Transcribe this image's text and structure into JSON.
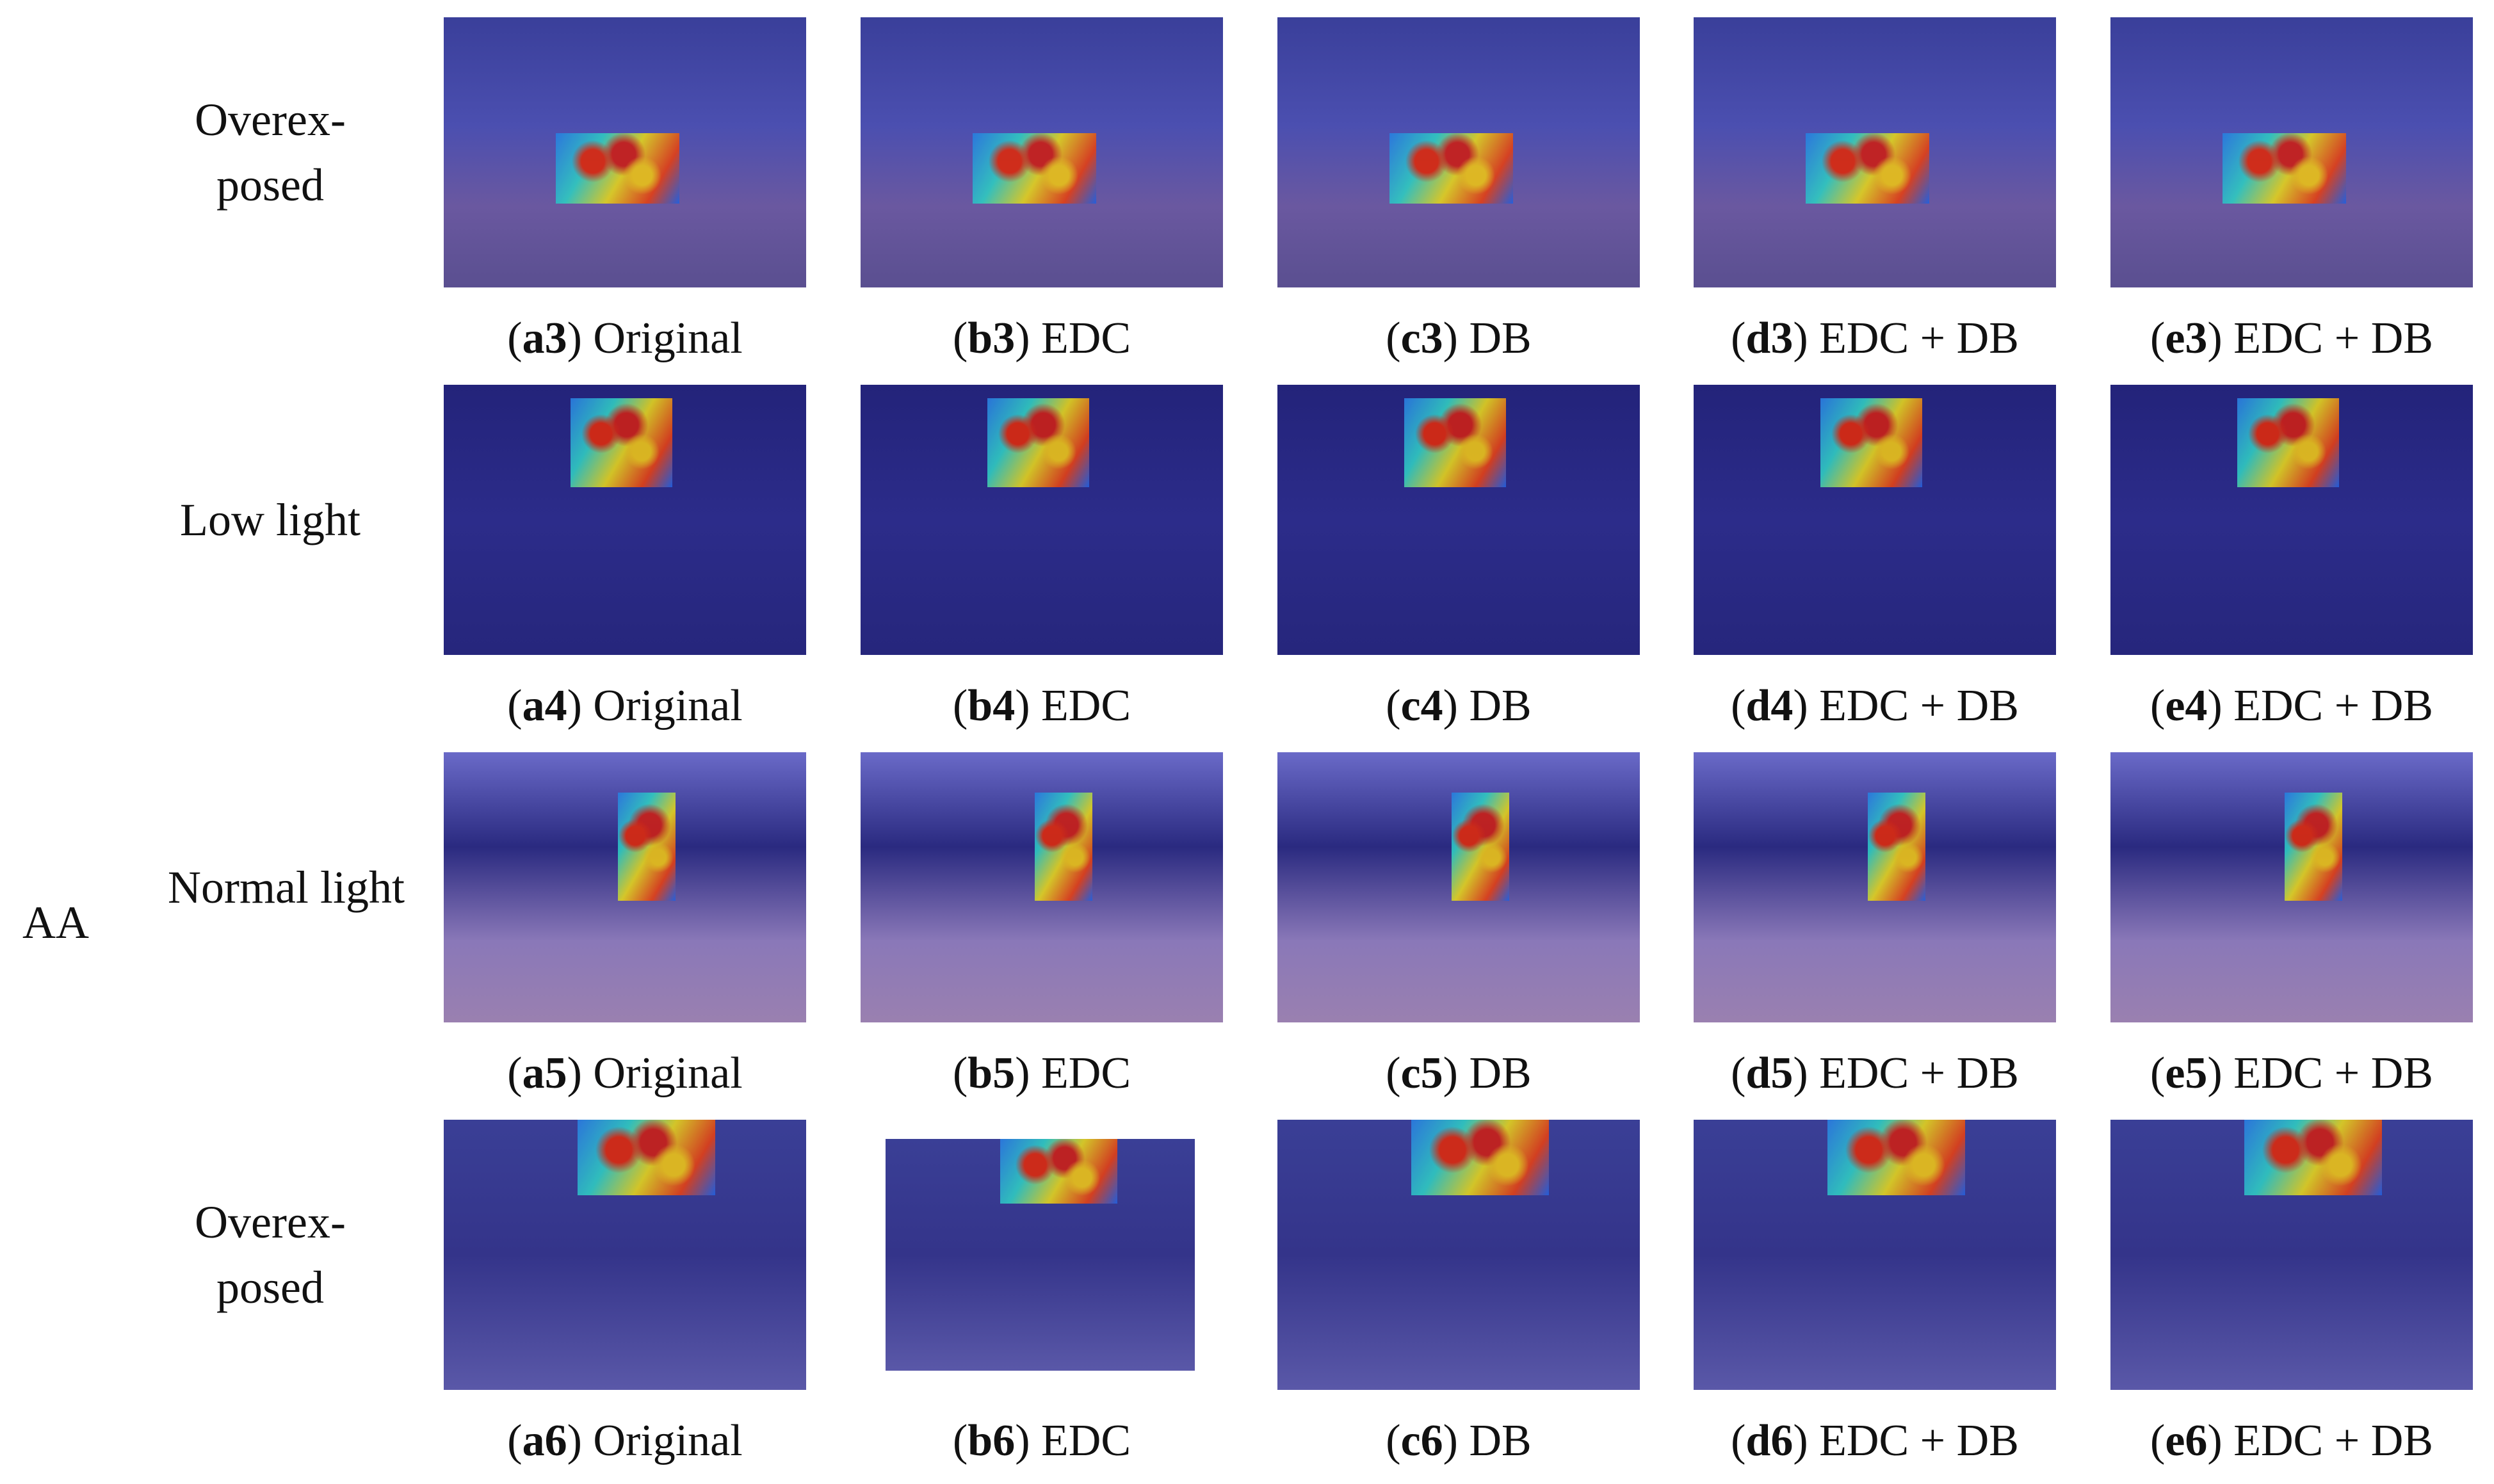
{
  "group_label": "AA",
  "rows": [
    {
      "label": "Overex- posed",
      "captions": [
        [
          "(",
          "a3",
          ") Original"
        ],
        [
          "(",
          "b3",
          ") EDC"
        ],
        [
          "(",
          "c3",
          ") DB"
        ],
        [
          "(",
          "d3",
          ") EDC + DB"
        ],
        [
          "(",
          "e3",
          ") EDC + DB"
        ]
      ]
    },
    {
      "label": "Low light",
      "captions": [
        [
          "(",
          "a4",
          ") Original"
        ],
        [
          "(",
          "b4",
          ") EDC"
        ],
        [
          "(",
          "c4",
          ") DB"
        ],
        [
          "(",
          "d4",
          ") EDC + DB"
        ],
        [
          "(",
          "e4",
          ") EDC + DB"
        ]
      ]
    },
    {
      "label": "Normal light",
      "captions": [
        [
          "(",
          "a5",
          ") Original"
        ],
        [
          "(",
          "b5",
          ") EDC"
        ],
        [
          "(",
          "c5",
          ") DB"
        ],
        [
          "(",
          "d5",
          ") EDC + DB"
        ],
        [
          "(",
          "e5",
          ") EDC + DB"
        ]
      ]
    },
    {
      "label": "Overex- posed",
      "captions": [
        [
          "(",
          "a6",
          ") Original"
        ],
        [
          "(",
          "b6",
          ") EDC"
        ],
        [
          "(",
          "c6",
          ") DB"
        ],
        [
          "(",
          "d6",
          ") EDC + DB"
        ],
        [
          "(",
          "e6",
          ") EDC + DB"
        ]
      ]
    }
  ]
}
